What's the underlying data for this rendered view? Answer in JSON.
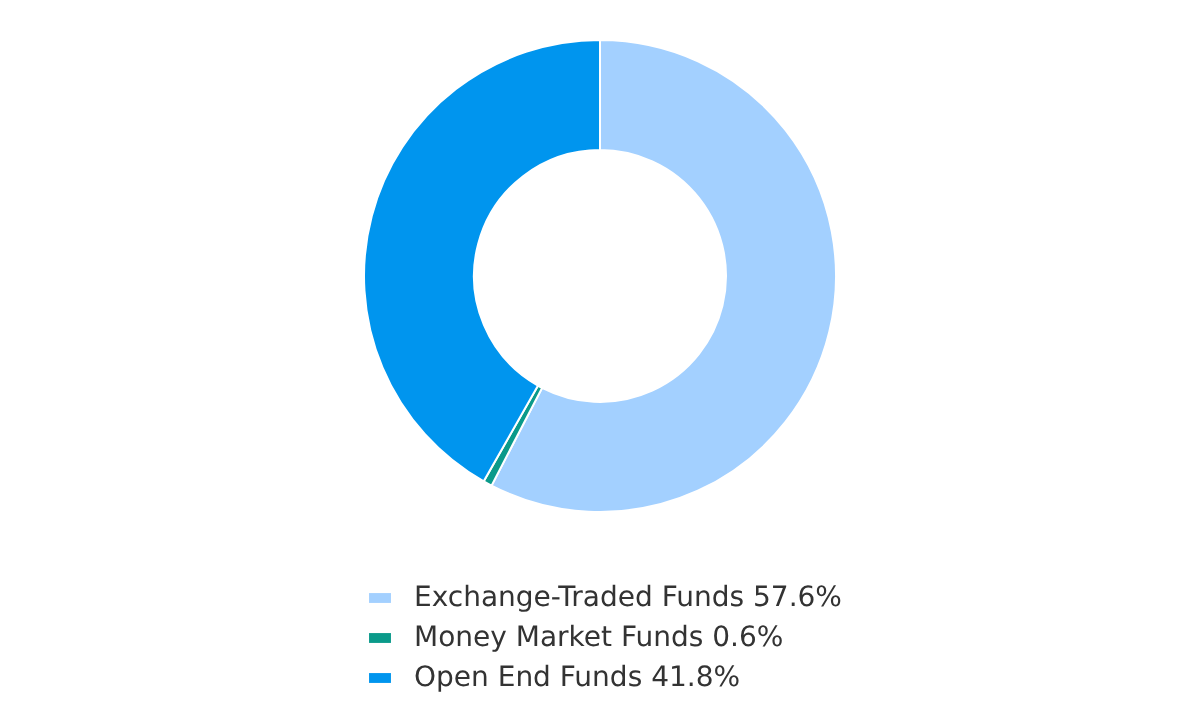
{
  "chart_data": {
    "type": "donut",
    "categories": [
      "Exchange-Traded Funds 57.6%",
      "Money Market Funds 0.6%",
      "Open End Funds 41.8%"
    ],
    "values": [
      57.6,
      0.6,
      41.8
    ],
    "colors": [
      "#a3d0ff",
      "#0a9a8a",
      "#0095ee"
    ],
    "legend": "bottom"
  }
}
